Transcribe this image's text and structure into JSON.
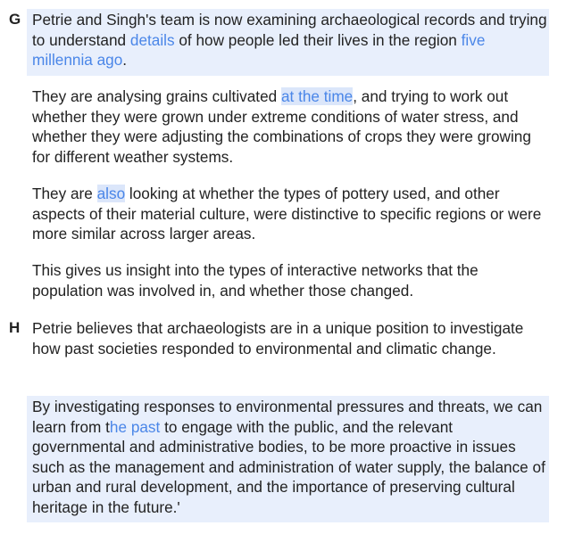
{
  "sections": [
    {
      "letter": "G",
      "paragraphs": [
        {
          "parts": [
            "Petrie and Singh's team is now examining archaeological records and trying to understand ",
            "details",
            " of how people led their lives in the region ",
            "five millennia ago",
            "."
          ]
        },
        {
          "parts": [
            "They are analysing grains cultivated ",
            "at the time",
            ", and trying to work out whether they were grown under extreme conditions of water stress, and whether they were adjusting the combinations of crops they were growing for different weather systems."
          ]
        },
        {
          "parts": [
            "They are ",
            "also",
            " looking at whether the types of pottery used, and other aspects of their material culture, were distinctive to specific regions or were more similar across larger areas."
          ]
        },
        {
          "parts": [
            "This gives us insight into the types of interactive networks that the population was involved in, and whether those changed."
          ]
        }
      ]
    },
    {
      "letter": "H",
      "paragraphs": [
        {
          "parts": [
            "Petrie believes that archaeologists are in a unique position to investigate how past societies responded to environmental and climatic change."
          ]
        },
        {
          "parts": [
            "By investigating responses to environmental pressures and threats, we can learn from t",
            "he past",
            " to engage with the public, and the relevant governmental and administrative bodies, to be more proactive in issues such as the management and administration of water supply, the balance of urban and rural development, and the importance of preserving cultural heritage in the future.'"
          ]
        }
      ]
    }
  ],
  "colors": {
    "text": "#222222",
    "link": "#4a86e8",
    "highlight_block": "#e8effc",
    "highlight_phrase": "#dbe6fa"
  }
}
